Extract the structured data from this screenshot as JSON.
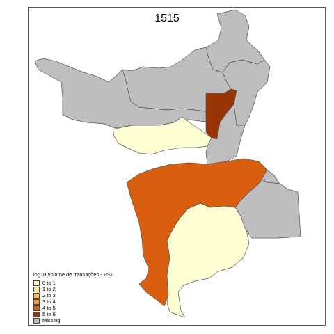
{
  "title": "1515",
  "legend": {
    "title": "log10(volume de transações - R$)",
    "items": [
      {
        "label": "0 to 1",
        "color": "#ffffd4"
      },
      {
        "label": "1 to 2",
        "color": "#fee391"
      },
      {
        "label": "2 to 3",
        "color": "#fec44f"
      },
      {
        "label": "3 to 4",
        "color": "#fe9929"
      },
      {
        "label": "4 to 5",
        "color": "#d95f0e"
      },
      {
        "label": "5 to 6",
        "color": "#993404"
      },
      {
        "label": "Missing",
        "color": "#bebebe"
      }
    ]
  },
  "regions": [
    {
      "name": "north-west",
      "class": "Missing"
    },
    {
      "name": "north-center",
      "class": "Missing"
    },
    {
      "name": "north-east-top",
      "class": "Missing"
    },
    {
      "name": "north-east-mid",
      "class": "Missing"
    },
    {
      "name": "strip-west",
      "class": "0 to 1"
    },
    {
      "name": "vertical-strip",
      "class": "5 to 6"
    },
    {
      "name": "center-east",
      "class": "Missing"
    },
    {
      "name": "south-west-large",
      "class": "4 to 5"
    },
    {
      "name": "south-center",
      "class": "0 to 1"
    },
    {
      "name": "east-lobe",
      "class": "Missing"
    },
    {
      "name": "far-east",
      "class": "Missing"
    }
  ]
}
